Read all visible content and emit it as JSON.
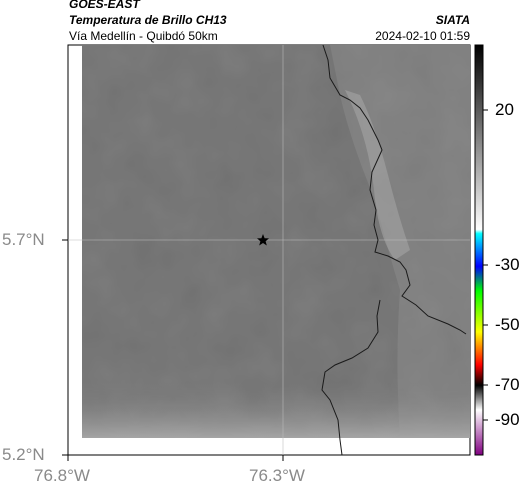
{
  "header": {
    "satellite": "GOES-EAST",
    "product": "Temperatura de Brillo CH13",
    "subtitle": "Vía Medellín - Quibdó 50km",
    "organization": "SIATA",
    "timestamp": "2024-02-10 01:59"
  },
  "map": {
    "lon_ticks": [
      "76.8°W",
      "76.3°W"
    ],
    "lat_ticks": [
      "5.7°N",
      "5.2°N"
    ],
    "marker": {
      "symbol": "star-marker",
      "label": ""
    },
    "colors": {
      "background_gray": "#7a7a7a",
      "lighter_band": "#9c9c9c",
      "coastline": "#1a1a1a",
      "gridline": "#bdbdbd"
    }
  },
  "colorbar": {
    "ticks": [
      "20",
      "-30",
      "-50",
      "-70",
      "-90"
    ],
    "colors": [
      "#000000",
      "#ffffff",
      "#00ffff",
      "#0000ff",
      "#00ff00",
      "#ffff00",
      "#ff0000",
      "#000000",
      "#ffffff",
      "#800080"
    ]
  }
}
